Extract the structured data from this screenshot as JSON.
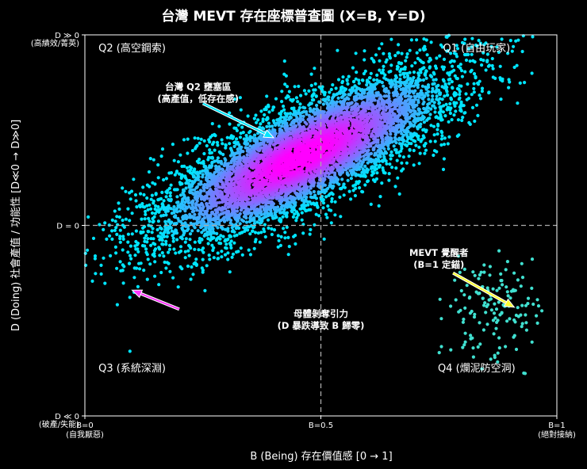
{
  "chart_data": {
    "type": "scatter",
    "title": "台灣 MEVT 存在座標普查圖 (X=B, Y=D)",
    "xlabel": "B (Being) 存在價值感 [0 → 1]",
    "ylabel": "D (Doing) 社會產值 / 功能性 [D≪0 → D≫0]",
    "xlim": [
      0,
      1
    ],
    "ylim": [
      -1,
      1
    ],
    "x_ticks": [
      {
        "value": 0,
        "label": "B=0",
        "sublabel": "(自我厭惡)"
      },
      {
        "value": 0.5,
        "label": "B=0.5",
        "sublabel": ""
      },
      {
        "value": 1,
        "label": "B=1",
        "sublabel": "(絕對接納)"
      }
    ],
    "y_ticks": [
      {
        "value": 1,
        "label": "D ≫ 0",
        "sublabel": "(高績效/菁英)"
      },
      {
        "value": 0,
        "label": "D = 0",
        "sublabel": ""
      },
      {
        "value": -1,
        "label": "D ≪ 0",
        "sublabel": "(破產/失能)"
      }
    ],
    "reference_lines": {
      "x": 0.5,
      "y": 0
    },
    "quadrants": [
      {
        "label": "Q2 (高空鋼索)",
        "x": 0.1,
        "y": 0.93
      },
      {
        "label": "Q1 (自由玩家)",
        "x": 0.83,
        "y": 0.93
      },
      {
        "label": "Q3 (系統深淵)",
        "x": 0.1,
        "y": -0.75
      },
      {
        "label": "Q4 (爛泥防空洞)",
        "x": 0.83,
        "y": -0.75
      }
    ],
    "annotations": [
      {
        "lines": [
          "台灣 Q2 壅塞區",
          "(高產值，低存在感)"
        ],
        "color": "#00e5ff",
        "text_x": 0.24,
        "text_y": 0.71,
        "arrow_from": [
          0.25,
          0.64
        ],
        "arrow_to": [
          0.4,
          0.46
        ]
      },
      {
        "lines": [
          "母體剝奪引力",
          "(D 暴跌導致 B 歸零)"
        ],
        "color": "#ff33ff",
        "text_x": 0.5,
        "text_y": -0.48,
        "arrow_from": [
          0.2,
          -0.44
        ],
        "arrow_to": [
          0.1,
          -0.34
        ]
      },
      {
        "lines": [
          "MEVT 覺醒者",
          "(B=1 定錨)"
        ],
        "color": "#ffff33",
        "text_x": 0.75,
        "text_y": -0.16,
        "arrow_from": [
          0.78,
          -0.25
        ],
        "arrow_to": [
          0.91,
          -0.43
        ]
      }
    ],
    "series": [
      {
        "distribution": "correlated cluster",
        "center": [
          0.46,
          0.36
        ],
        "spread_major": 0.27,
        "spread_minor": 0.085,
        "slope": 1.58,
        "count": 6500,
        "colormap": [
          "#00e5ff",
          "#ff00ff"
        ]
      },
      {
        "distribution": "cluster",
        "center": [
          0.87,
          -0.45
        ],
        "spread_x": 0.05,
        "spread_y": 0.13,
        "count": 150,
        "color": "#40e0d0"
      }
    ],
    "style": {
      "background": "#000000",
      "ref_line_color": "#aaaaaa",
      "axis_color": "#ffffff",
      "grid": false
    }
  }
}
